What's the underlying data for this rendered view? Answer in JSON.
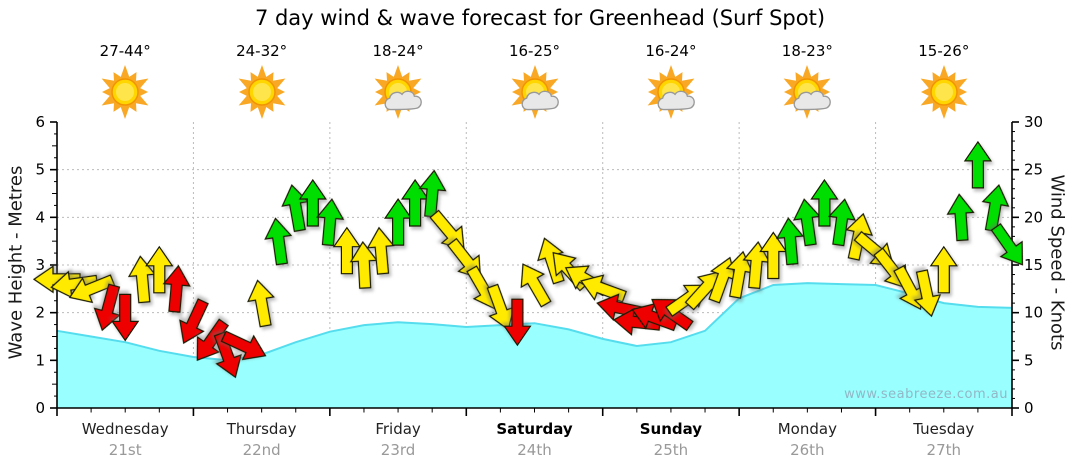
{
  "title": "7 day wind & wave forecast for Greenhead (Surf Spot)",
  "watermark": "www.seabreeze.com.au",
  "axes": {
    "left": {
      "label": "Wave Height - Metres",
      "ticks": [
        0,
        1,
        2,
        3,
        4,
        5,
        6
      ]
    },
    "right": {
      "label": "Wind Speed - Knots",
      "ticks": [
        0,
        5,
        10,
        15,
        20,
        25,
        30
      ]
    }
  },
  "days": [
    {
      "name": "Wednesday",
      "date": "21st",
      "temp": "27-44°",
      "icon": "sun",
      "weekend": false
    },
    {
      "name": "Thursday",
      "date": "22nd",
      "temp": "24-32°",
      "icon": "sun",
      "weekend": false
    },
    {
      "name": "Friday",
      "date": "23rd",
      "temp": "18-24°",
      "icon": "sun-cloud",
      "weekend": false
    },
    {
      "name": "Saturday",
      "date": "24th",
      "temp": "16-25°",
      "icon": "sun-cloud",
      "weekend": true
    },
    {
      "name": "Sunday",
      "date": "25th",
      "temp": "16-24°",
      "icon": "sun-cloud",
      "weekend": true
    },
    {
      "name": "Monday",
      "date": "26th",
      "temp": "18-23°",
      "icon": "sun-cloud",
      "weekend": false
    },
    {
      "name": "Tuesday",
      "date": "27th",
      "temp": "15-26°",
      "icon": "sun",
      "weekend": false
    }
  ],
  "colors": {
    "wind_light": "#EE0000",
    "wind_moderate": "#FFEA00",
    "wind_strong": "#00DD00",
    "arrow_outline": "#1a1a00",
    "wave_fill": "#99FFFF",
    "wave_edge": "#55DDEE",
    "grid": "#BBBBBB",
    "axis": "#000000"
  },
  "chart_data": {
    "type": "combo",
    "title": "7 day wind & wave forecast for Greenhead (Surf Spot)",
    "x_unit": "hours",
    "x_range": [
      0,
      168
    ],
    "hours_per_day": 24,
    "x_categories": [
      "Wednesday 21st",
      "Thursday 22nd",
      "Friday 23rd",
      "Saturday 24th",
      "Sunday 25th",
      "Monday 26th",
      "Tuesday 27th"
    ],
    "left_ylabel": "Wave Height - Metres",
    "left_ylim": [
      0,
      6
    ],
    "right_ylabel": "Wind Speed - Knots",
    "right_ylim": [
      0,
      30
    ],
    "grid": true,
    "series": [
      {
        "name": "Wave Height",
        "type": "area",
        "axis": "left",
        "x": [
          0,
          6,
          12,
          18,
          24,
          30,
          36,
          42,
          48,
          54,
          60,
          66,
          72,
          78,
          84,
          90,
          96,
          102,
          108,
          114,
          120,
          126,
          132,
          138,
          144,
          150,
          156,
          162,
          168
        ],
        "values": [
          1.62,
          1.5,
          1.38,
          1.2,
          1.07,
          1.0,
          1.12,
          1.38,
          1.6,
          1.74,
          1.8,
          1.76,
          1.7,
          1.74,
          1.78,
          1.65,
          1.45,
          1.3,
          1.38,
          1.62,
          2.3,
          2.58,
          2.62,
          2.6,
          2.58,
          2.4,
          2.2,
          2.12,
          2.1
        ]
      },
      {
        "name": "Wind Speed",
        "type": "wind_arrows",
        "axis": "right",
        "point_format": [
          "hour",
          "knots",
          "direction_deg_cw_from_up",
          "color_code"
        ],
        "color_codes": {
          "R": "light wind",
          "Y": "moderate wind",
          "G": "strong wind"
        },
        "points": [
          [
            0,
            13.5,
            270,
            "Y"
          ],
          [
            3,
            13,
            262,
            "Y"
          ],
          [
            6,
            12.5,
            248,
            "Y"
          ],
          [
            9,
            10.5,
            195,
            "R"
          ],
          [
            12,
            9.5,
            180,
            "R"
          ],
          [
            15,
            13.5,
            355,
            "Y"
          ],
          [
            18,
            14.5,
            0,
            "Y"
          ],
          [
            21,
            12.5,
            5,
            "R"
          ],
          [
            24,
            9,
            205,
            "R"
          ],
          [
            27,
            7,
            215,
            "R"
          ],
          [
            30,
            5.5,
            160,
            "R"
          ],
          [
            33,
            6.5,
            115,
            "R"
          ],
          [
            36,
            11,
            350,
            "Y"
          ],
          [
            39,
            17.5,
            352,
            "G"
          ],
          [
            42,
            21,
            350,
            "G"
          ],
          [
            45,
            21.5,
            0,
            "G"
          ],
          [
            48,
            19.5,
            5,
            "G"
          ],
          [
            51,
            16.5,
            0,
            "Y"
          ],
          [
            54,
            15,
            357,
            "Y"
          ],
          [
            57,
            16.5,
            355,
            "Y"
          ],
          [
            60,
            19.5,
            0,
            "G"
          ],
          [
            63,
            21.5,
            0,
            "G"
          ],
          [
            66,
            22.5,
            5,
            "G"
          ],
          [
            69,
            18.5,
            140,
            "Y"
          ],
          [
            72,
            15.5,
            142,
            "Y"
          ],
          [
            75,
            12.5,
            150,
            "Y"
          ],
          [
            78,
            10.5,
            160,
            "Y"
          ],
          [
            81,
            9,
            180,
            "R"
          ],
          [
            84,
            13,
            330,
            "Y"
          ],
          [
            87,
            15.5,
            342,
            "Y"
          ],
          [
            90,
            14.5,
            318,
            "Y"
          ],
          [
            93,
            13.5,
            300,
            "Y"
          ],
          [
            96,
            12.5,
            290,
            "Y"
          ],
          [
            99,
            10.5,
            282,
            "R"
          ],
          [
            102,
            9,
            276,
            "R"
          ],
          [
            105,
            9.5,
            290,
            "R"
          ],
          [
            108,
            10,
            305,
            "R"
          ],
          [
            111,
            11.5,
            55,
            "Y"
          ],
          [
            114,
            12.5,
            42,
            "Y"
          ],
          [
            117,
            13.5,
            20,
            "Y"
          ],
          [
            120,
            14,
            10,
            "Y"
          ],
          [
            123,
            15,
            5,
            "Y"
          ],
          [
            126,
            16,
            0,
            "Y"
          ],
          [
            129,
            17.5,
            355,
            "G"
          ],
          [
            132,
            19.5,
            352,
            "G"
          ],
          [
            135,
            21.5,
            0,
            "G"
          ],
          [
            138,
            19.5,
            8,
            "G"
          ],
          [
            141,
            18,
            12,
            "Y"
          ],
          [
            144,
            16.5,
            130,
            "Y"
          ],
          [
            147,
            14.5,
            142,
            "Y"
          ],
          [
            150,
            12.5,
            152,
            "Y"
          ],
          [
            153,
            12,
            168,
            "Y"
          ],
          [
            156,
            14.5,
            0,
            "Y"
          ],
          [
            159,
            20,
            356,
            "G"
          ],
          [
            162,
            25.5,
            0,
            "G"
          ],
          [
            165,
            21,
            10,
            "G"
          ],
          [
            167.5,
            17,
            145,
            "G"
          ]
        ]
      }
    ]
  }
}
